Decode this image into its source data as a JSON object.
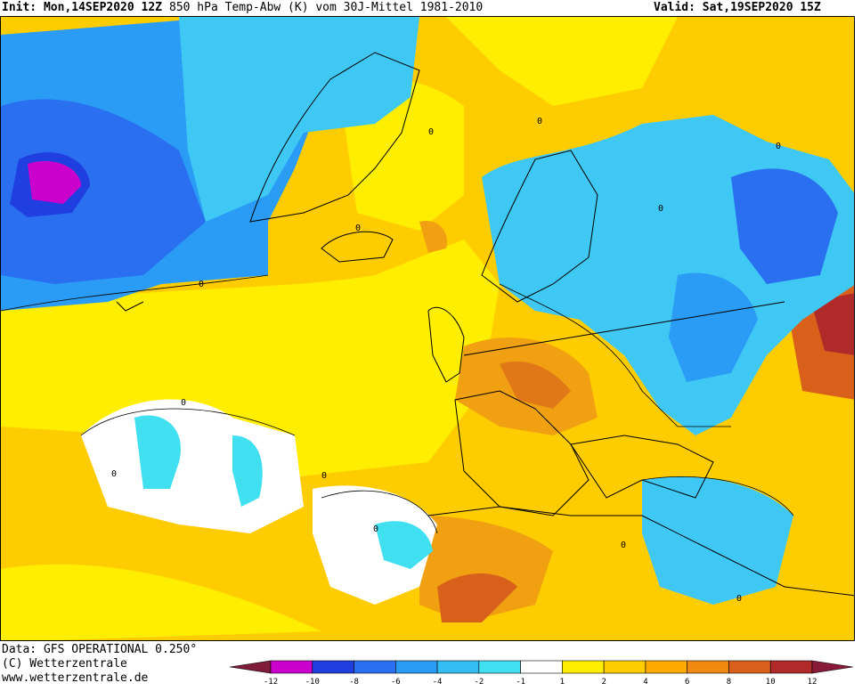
{
  "header": {
    "init": "Init: Mon,14SEP2020 12Z",
    "title": "850 hPa Temp-Abw (K) vom 30J-Mittel 1981-2010",
    "valid": "Valid: Sat,19SEP2020 15Z"
  },
  "footer": {
    "data": "Data: GFS OPERATIONAL 0.250°",
    "copyright": "(C) Wetterzentrale",
    "url": "www.wetterzentrale.de"
  },
  "legend": {
    "labels": [
      "-12",
      "-10",
      "-8",
      "-6",
      "-4",
      "-2",
      "-1",
      "1",
      "2",
      "4",
      "6",
      "8",
      "10",
      "12"
    ],
    "colors": [
      "#7e1c3a",
      "#cc00cc",
      "#1f3fe0",
      "#2a6ff0",
      "#2a9cf5",
      "#33bdf5",
      "#40e0f0",
      "#ffffff",
      "#ffee00",
      "#ffcc00",
      "#ffaa00",
      "#f08a10",
      "#d9601a",
      "#b02a2a",
      "#8a1a3a"
    ]
  },
  "map": {
    "contour_labels": [
      "0",
      "0",
      "0",
      "0",
      "0",
      "0",
      "0",
      "0",
      "0",
      "0",
      "0",
      "0"
    ]
  }
}
